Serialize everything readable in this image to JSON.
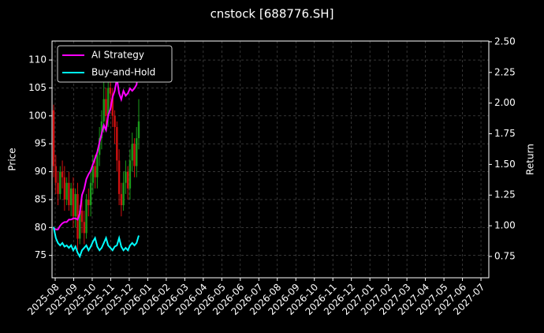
{
  "chart_data": {
    "type": "candlestick",
    "title": "cnstock [688776.SH]",
    "ylabel": "Price",
    "y2label": "Return",
    "categories": [
      null,
      null,
      null,
      null,
      null,
      null,
      null,
      null,
      null,
      null,
      null,
      null,
      null,
      null,
      null,
      null,
      null,
      null,
      null,
      null,
      null,
      null,
      null,
      null,
      null,
      null,
      null,
      null,
      null,
      null,
      null,
      null,
      null,
      null,
      null,
      null,
      null,
      null,
      null,
      null
    ],
    "open": [
      101,
      91,
      88,
      86,
      90,
      89,
      85,
      88,
      84,
      87,
      82,
      86,
      78,
      83,
      81,
      79,
      85,
      84,
      88,
      91,
      89,
      93,
      96,
      99,
      103,
      100,
      105,
      104,
      100,
      98,
      92,
      86,
      84,
      88,
      90,
      87,
      92,
      95,
      91,
      96
    ],
    "high": [
      102,
      93,
      90,
      91,
      92,
      91,
      89,
      90,
      88,
      89,
      87,
      88,
      84,
      85,
      83,
      86,
      87,
      90,
      93,
      93,
      94,
      98,
      101,
      108,
      105,
      107,
      106,
      105,
      101,
      99,
      94,
      88,
      90,
      92,
      91,
      94,
      97,
      96,
      98,
      103
    ],
    "low": [
      89,
      86,
      84,
      85,
      87,
      83,
      84,
      83,
      82,
      80,
      80,
      76,
      77,
      79,
      77,
      78,
      82,
      82,
      86,
      87,
      87,
      91,
      94,
      97,
      98,
      98,
      101,
      98,
      95,
      90,
      84,
      82,
      83,
      86,
      85,
      85,
      90,
      89,
      89,
      94
    ],
    "close": [
      91,
      88,
      86,
      90,
      89,
      85,
      88,
      84,
      87,
      82,
      86,
      78,
      83,
      81,
      79,
      85,
      84,
      88,
      91,
      89,
      93,
      96,
      99,
      103,
      100,
      105,
      104,
      100,
      98,
      92,
      86,
      84,
      88,
      90,
      87,
      92,
      95,
      91,
      96,
      99
    ],
    "up_color": "#1a9a1a",
    "down_color": "#d01010",
    "series": [
      {
        "name": "AI Strategy",
        "color": "#ff00ff",
        "axis": "y2",
        "values": [
          0.98,
          0.97,
          0.97,
          1.0,
          1.02,
          1.03,
          1.03,
          1.05,
          1.05,
          1.06,
          1.06,
          1.05,
          1.1,
          1.25,
          1.3,
          1.38,
          1.42,
          1.45,
          1.5,
          1.55,
          1.6,
          1.68,
          1.75,
          1.82,
          1.78,
          1.9,
          1.95,
          2.05,
          2.1,
          2.2,
          2.08,
          2.03,
          2.1,
          2.06,
          2.08,
          2.12,
          2.1,
          2.12,
          2.15,
          2.3
        ]
      },
      {
        "name": "Buy-and-Hold",
        "color": "#00ffff",
        "axis": "y2",
        "values": [
          0.99,
          0.9,
          0.86,
          0.84,
          0.86,
          0.83,
          0.84,
          0.82,
          0.84,
          0.8,
          0.83,
          0.78,
          0.75,
          0.8,
          0.82,
          0.84,
          0.8,
          0.83,
          0.87,
          0.9,
          0.83,
          0.8,
          0.82,
          0.86,
          0.9,
          0.84,
          0.82,
          0.8,
          0.83,
          0.84,
          0.9,
          0.83,
          0.8,
          0.82,
          0.8,
          0.84,
          0.86,
          0.84,
          0.86,
          0.92
        ]
      }
    ],
    "xticks": [
      "2025-08",
      "2025-09",
      "2025-10",
      "2025-11",
      "2025-12",
      "2026-01",
      "2026-02",
      "2026-03",
      "2026-04",
      "2026-05",
      "2026-06",
      "2026-07",
      "2026-08",
      "2026-09",
      "2026-10",
      "2026-11",
      "2026-12",
      "2027-01",
      "2027-02",
      "2027-03",
      "2027-04",
      "2027-05",
      "2027-06",
      "2027-07"
    ],
    "ylim": [
      71,
      113.4
    ],
    "yticks": [
      75,
      80,
      85,
      90,
      95,
      100,
      105,
      110
    ],
    "y2lim": [
      0.576,
      2.506
    ],
    "y2ticks": [
      {
        "value": 0.75,
        "label": "0.75"
      },
      {
        "value": 1,
        "label": "1.00"
      },
      {
        "value": 1.25,
        "label": "1.25"
      },
      {
        "value": 1.5,
        "label": "1.50"
      },
      {
        "value": 1.75,
        "label": "1.75"
      },
      {
        "value": 2,
        "label": "2.00"
      },
      {
        "value": 2.25,
        "label": "2.25"
      },
      {
        "value": 2.5,
        "label": "2.50"
      }
    ],
    "grid": true,
    "legend": "upper left"
  }
}
